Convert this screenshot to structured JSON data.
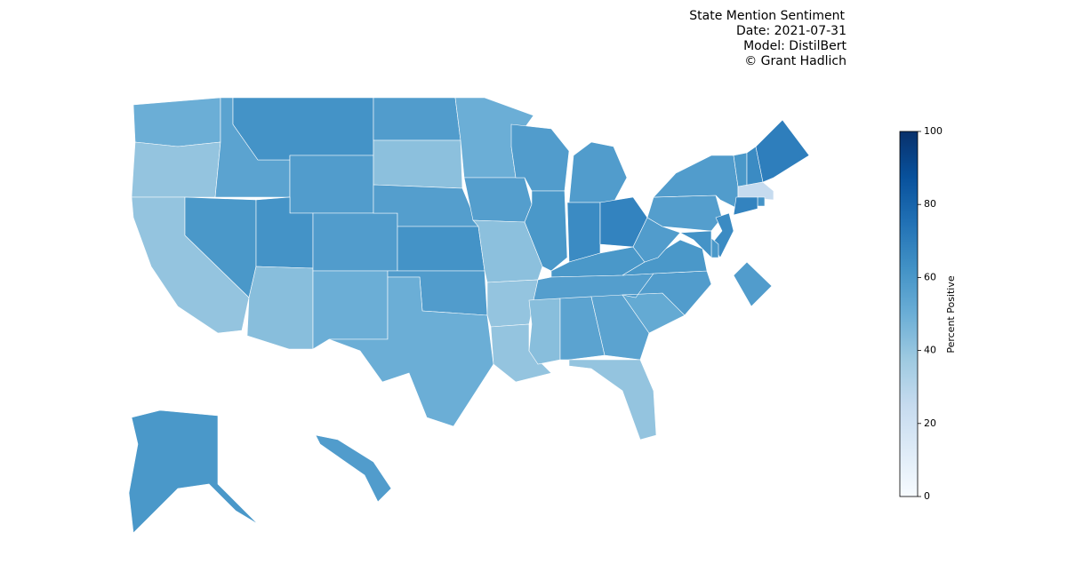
{
  "chart_data": {
    "type": "choropleth",
    "title": "State Mention Sentiment",
    "annotations": [
      "Date: 2021-07-31",
      "Model: DistilBert",
      "© Grant Hadlich"
    ],
    "values": [
      50,
      40,
      40,
      60,
      55,
      62,
      58,
      62,
      43,
      58,
      50,
      58,
      42,
      57,
      62,
      58,
      50,
      50,
      57,
      42,
      40,
      40,
      58,
      60,
      58,
      65,
      68,
      60,
      57,
      43,
      55,
      55,
      40,
      52,
      58,
      60,
      58,
      57,
      58,
      60,
      65,
      70,
      25,
      62,
      68,
      65,
      60,
      62,
      58,
      60,
      58
    ],
    "colorbar": {
      "label": "Percent Positive",
      "clim": [
        0,
        100
      ],
      "ticks": [
        0,
        20,
        40,
        60,
        80,
        100
      ],
      "colormap": [
        "#f7fbff",
        "#deebf7",
        "#c6dbef",
        "#9ecae1",
        "#6baed6",
        "#4292c6",
        "#2171b5",
        "#08519c",
        "#08306b"
      ]
    }
  }
}
